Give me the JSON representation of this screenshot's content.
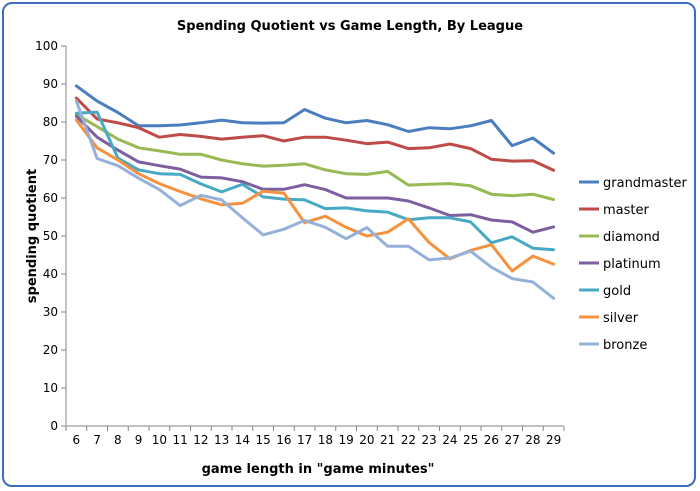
{
  "chart_data": {
    "type": "line",
    "title": "Spending Quotient vs Game Length, By League",
    "xlabel": "game length in \"game minutes\"",
    "ylabel": "spending quotient",
    "ylim": [
      0,
      100
    ],
    "ytick_step": 10,
    "grid": false,
    "legend": "right",
    "x": [
      6,
      7,
      8,
      9,
      10,
      11,
      12,
      13,
      14,
      15,
      16,
      17,
      18,
      19,
      20,
      21,
      22,
      23,
      24,
      25,
      26,
      27,
      28,
      29
    ],
    "series": [
      {
        "name": "grandmaster",
        "color": "#4a7ebf",
        "values": [
          89.5,
          85.5,
          82.5,
          79,
          79,
          79.2,
          79.8,
          80.5,
          79.8,
          79.7,
          79.8,
          83.3,
          81,
          79.8,
          80.4,
          79.3,
          77.5,
          78.5,
          78.2,
          79,
          80.4,
          73.8,
          75.8,
          71.8
        ]
      },
      {
        "name": "master",
        "color": "#be4b48",
        "values": [
          86.3,
          80.8,
          79.8,
          78.5,
          76,
          76.7,
          76.2,
          75.5,
          76,
          76.4,
          75,
          76,
          76,
          75.2,
          74.3,
          74.7,
          73,
          73.2,
          74.2,
          73,
          70.2,
          69.7,
          69.8,
          67.3
        ]
      },
      {
        "name": "diamond",
        "color": "#98b954",
        "values": [
          82,
          78.8,
          75.5,
          73.2,
          72.4,
          71.5,
          71.5,
          70,
          69,
          68.4,
          68.6,
          69,
          67.4,
          66.4,
          66.2,
          67,
          63.4,
          63.6,
          63.8,
          63.2,
          61,
          60.6,
          61,
          59.6
        ]
      },
      {
        "name": "platinum",
        "color": "#7d5fa0",
        "values": [
          81.5,
          76,
          72.6,
          69.5,
          68.5,
          67.6,
          65.5,
          65.3,
          64.3,
          62.3,
          62.3,
          63.5,
          62.2,
          60,
          60,
          60,
          59.2,
          57.4,
          55.4,
          55.6,
          54.2,
          53.7,
          51,
          52.4
        ]
      },
      {
        "name": "gold",
        "color": "#46aac5",
        "values": [
          82.3,
          82.6,
          70.5,
          67.4,
          66.4,
          66.2,
          63.7,
          61.6,
          63.6,
          60.3,
          59.7,
          59.5,
          57.2,
          57.4,
          56.6,
          56.3,
          54.3,
          54.8,
          54.8,
          53.7,
          48.2,
          49.8,
          46.8,
          46.4
        ]
      },
      {
        "name": "silver",
        "color": "#f59240",
        "values": [
          80.5,
          73.2,
          70,
          66.4,
          63.8,
          61.7,
          59.8,
          58.2,
          58.6,
          61.8,
          61.3,
          53.5,
          55.2,
          52.3,
          50,
          51,
          54.5,
          48.3,
          44,
          46.2,
          47.7,
          40.8,
          44.7,
          42.6
        ]
      },
      {
        "name": "bronze",
        "color": "#95b0d9",
        "values": [
          85.5,
          70.4,
          68.5,
          65.2,
          62.2,
          58,
          60.7,
          59.5,
          54.8,
          50.3,
          51.8,
          54.1,
          52.3,
          49.3,
          52.2,
          47.3,
          47.3,
          43.7,
          44.2,
          46,
          41.8,
          38.8,
          37.9,
          33.6
        ]
      }
    ]
  }
}
